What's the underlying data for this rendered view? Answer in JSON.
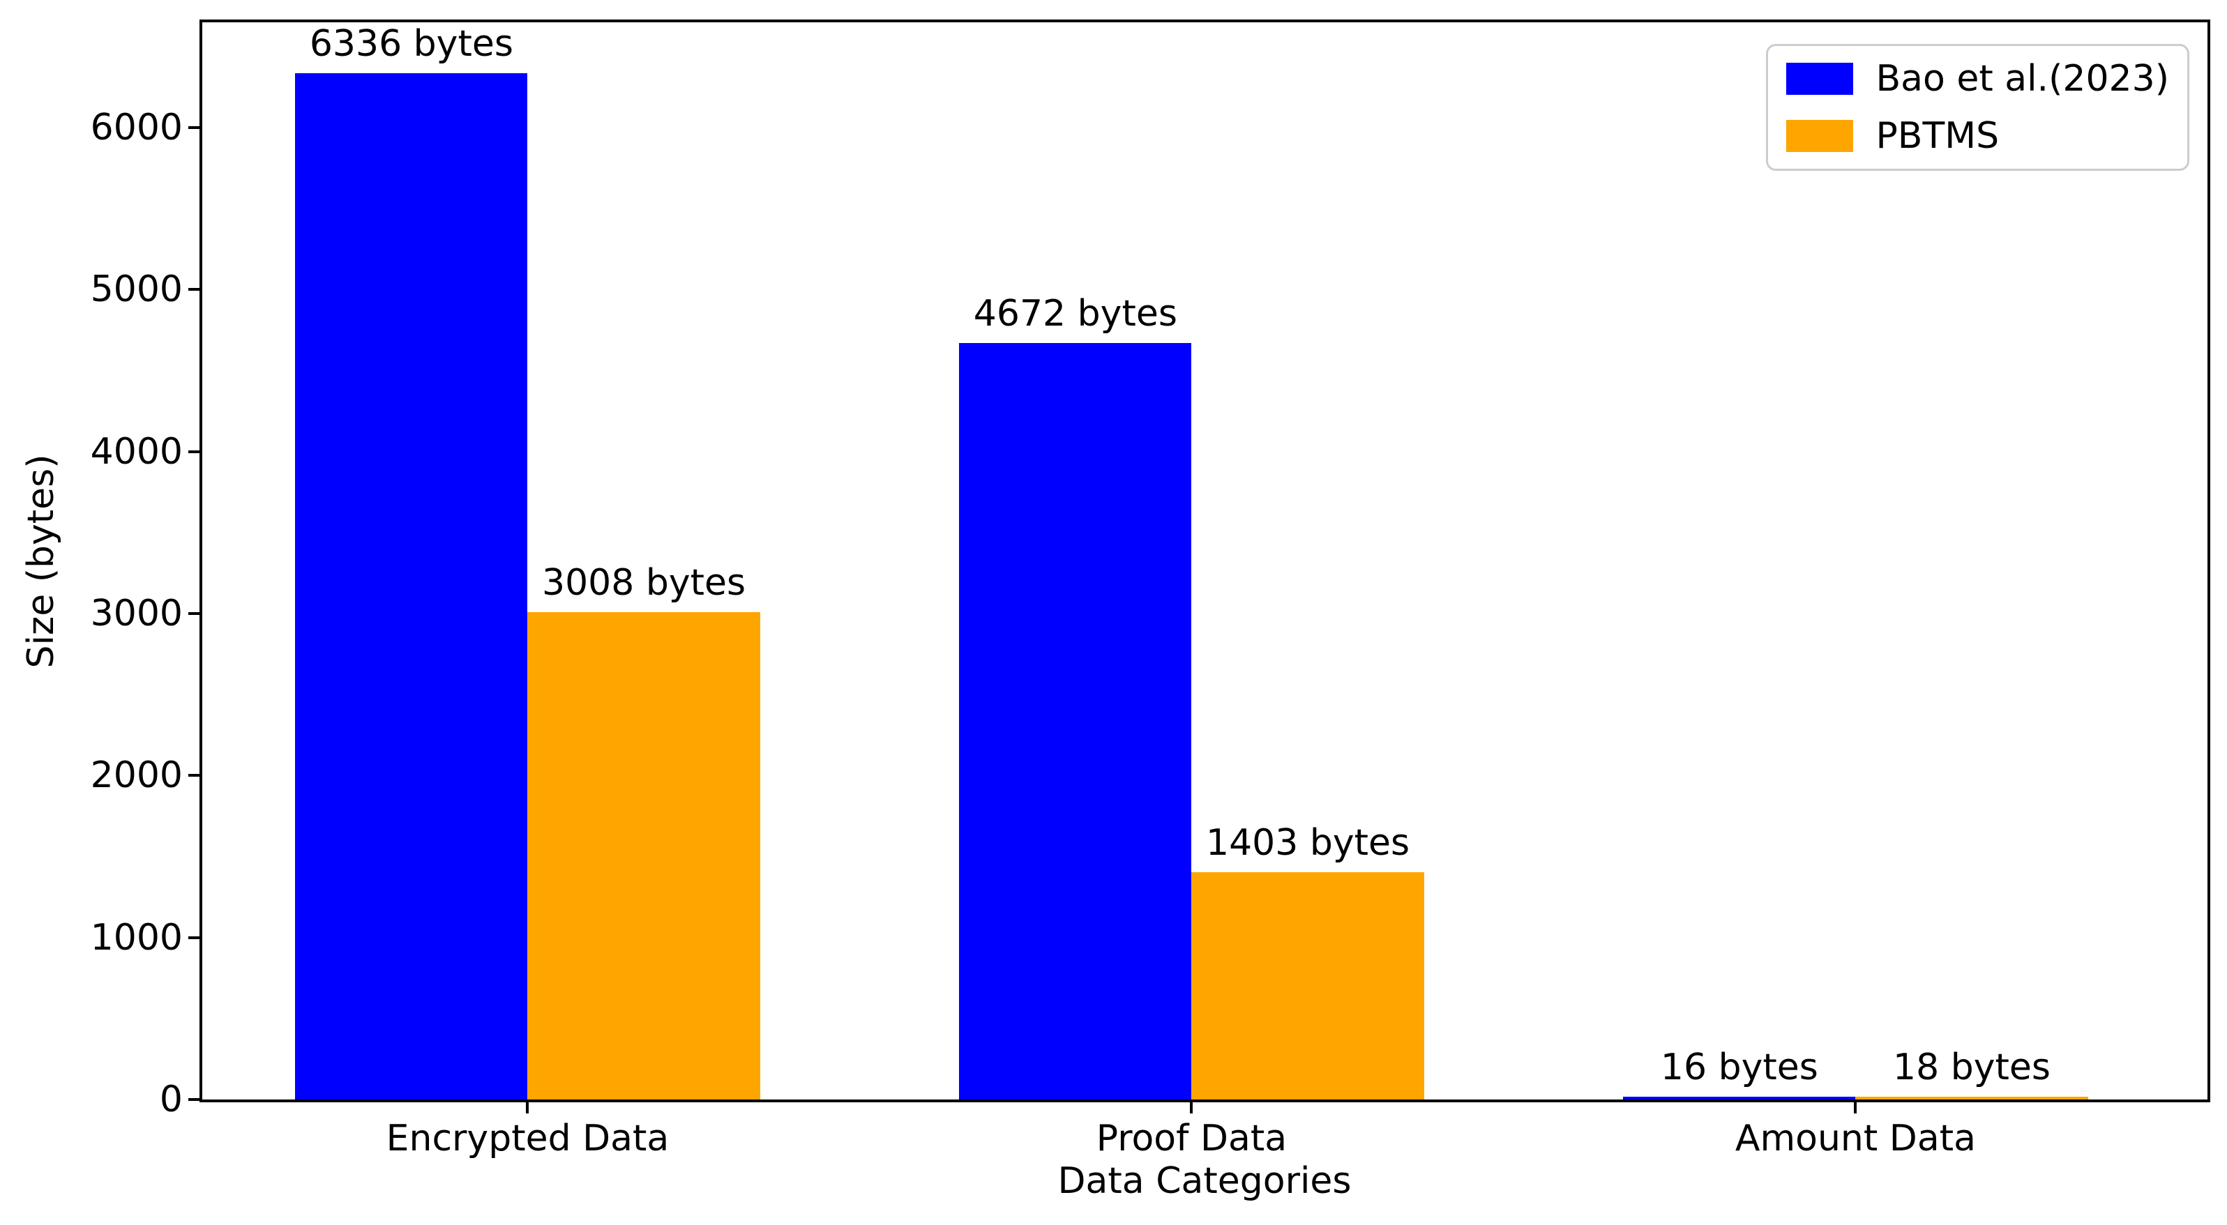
{
  "chart_data": {
    "type": "bar",
    "title": "",
    "xlabel": "Data Categories",
    "ylabel": "Size (bytes)",
    "unit": "bytes",
    "categories": [
      "Encrypted Data",
      "Proof Data",
      "Amount Data"
    ],
    "series": [
      {
        "name": "Bao et al.(2023)",
        "color": "#0000ff",
        "values": [
          6336,
          4672,
          16
        ],
        "bar_labels": [
          "6336 bytes",
          "4672 bytes",
          "16 bytes"
        ]
      },
      {
        "name": "PBTMS",
        "color": "#ffa500",
        "values": [
          3008,
          1403,
          18
        ],
        "bar_labels": [
          "3008 bytes",
          "1403 bytes",
          "18 bytes"
        ]
      }
    ],
    "yticks": [
      0,
      1000,
      2000,
      3000,
      4000,
      5000,
      6000
    ],
    "ylim": [
      0,
      6650
    ],
    "xlim": [
      -0.49,
      2.53
    ],
    "bar_width": 0.35,
    "grid": false,
    "legend_position": "upper right",
    "background_color": "#ffffff",
    "axis_color": "#000000",
    "text_color": "#000000",
    "legend_border_color": "#cccccc"
  }
}
